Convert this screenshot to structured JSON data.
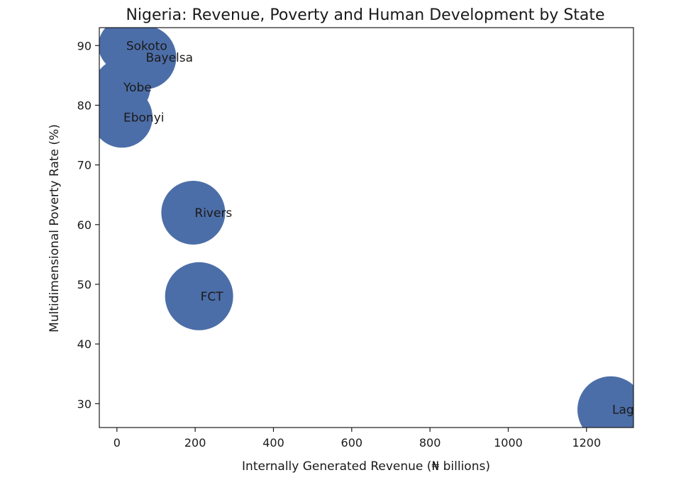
{
  "chart_data": {
    "type": "scatter",
    "title": "Nigeria: Revenue, Poverty and Human Development by State",
    "xlabel": "Internally Generated Revenue (₦ billions)",
    "ylabel": "Multidimensional Poverty Rate (%)",
    "xlim": [
      -45,
      1320
    ],
    "ylim": [
      26,
      93
    ],
    "xticks": [
      0,
      200,
      400,
      600,
      800,
      1000,
      1200
    ],
    "yticks": [
      30,
      40,
      50,
      60,
      70,
      80,
      90
    ],
    "grid": false,
    "marker_color": "#4c6ea8",
    "points": [
      {
        "label": "Sokoto",
        "x": 20,
        "y": 90,
        "r": 37
      },
      {
        "label": "Bayelsa",
        "x": 70,
        "y": 88,
        "r": 45
      },
      {
        "label": "Yobe",
        "x": 13,
        "y": 83,
        "r": 40
      },
      {
        "label": "Ebonyi",
        "x": 13,
        "y": 78,
        "r": 43
      },
      {
        "label": "Rivers",
        "x": 195,
        "y": 62,
        "r": 45
      },
      {
        "label": "FCT",
        "x": 210,
        "y": 48,
        "r": 48
      },
      {
        "label": "Lagos",
        "x": 1262,
        "y": 29,
        "r": 47
      }
    ]
  }
}
